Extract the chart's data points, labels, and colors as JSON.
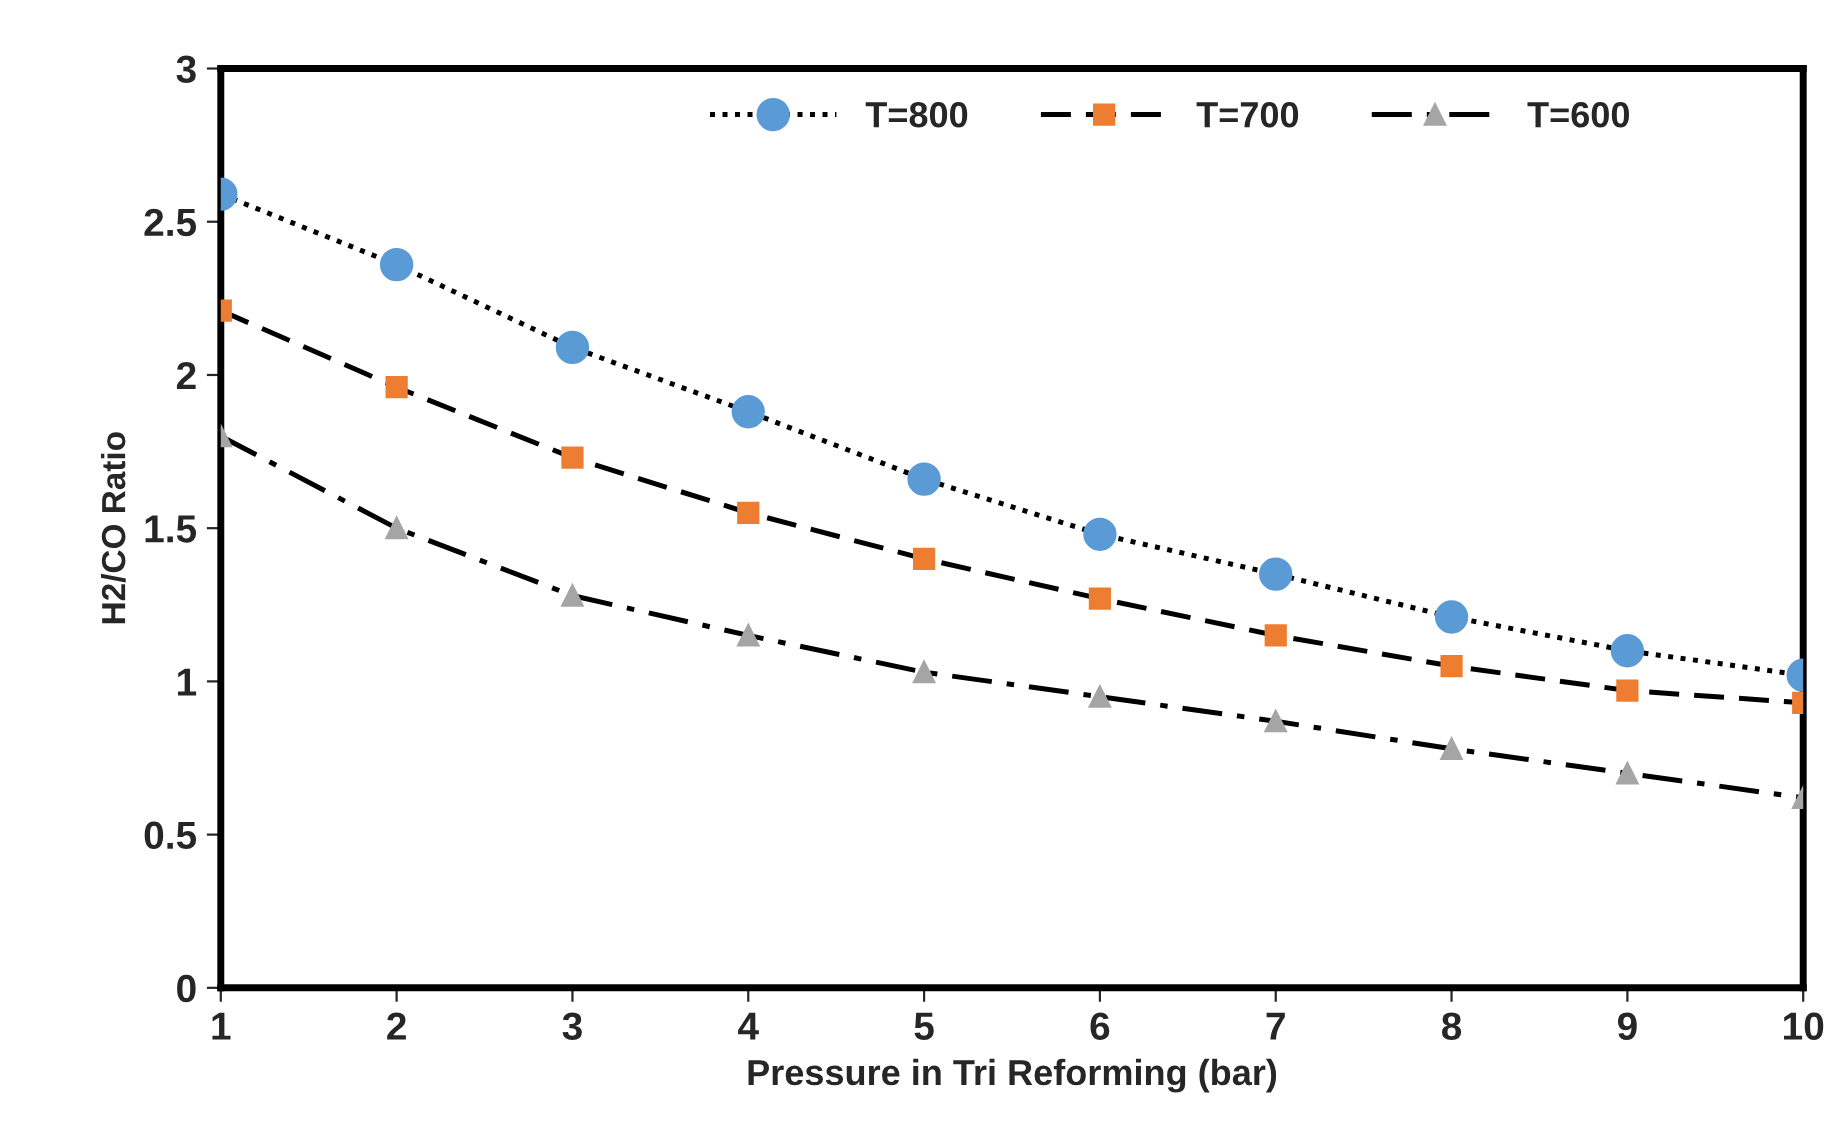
{
  "chart_data": {
    "type": "line",
    "xlabel": "Pressure in Tri Reforming (bar)",
    "ylabel": "H2/CO Ratio",
    "x": [
      1,
      2,
      3,
      4,
      5,
      6,
      7,
      8,
      9,
      10
    ],
    "series": [
      {
        "name": "T=800",
        "color": "#5b9bd5",
        "marker": "circle",
        "line_style": "dotted",
        "values": [
          2.59,
          2.36,
          2.09,
          1.88,
          1.66,
          1.48,
          1.35,
          1.21,
          1.1,
          1.02
        ]
      },
      {
        "name": "T=700",
        "color": "#ed7d31",
        "marker": "square",
        "line_style": "dashed",
        "values": [
          2.21,
          1.96,
          1.73,
          1.55,
          1.4,
          1.27,
          1.15,
          1.05,
          0.97,
          0.93
        ]
      },
      {
        "name": "T=600",
        "color": "#a5a5a5",
        "marker": "triangle",
        "line_style": "dashdot",
        "values": [
          1.8,
          1.5,
          1.28,
          1.15,
          1.03,
          0.95,
          0.87,
          0.78,
          0.7,
          0.62
        ]
      }
    ],
    "xlim": [
      1,
      10
    ],
    "xticks": [
      1,
      2,
      3,
      4,
      5,
      6,
      7,
      8,
      9,
      10
    ],
    "ylim": [
      0,
      3
    ],
    "yticks": [
      0,
      0.5,
      1,
      1.5,
      2,
      2.5,
      3
    ],
    "grid": false,
    "legend": "top"
  }
}
